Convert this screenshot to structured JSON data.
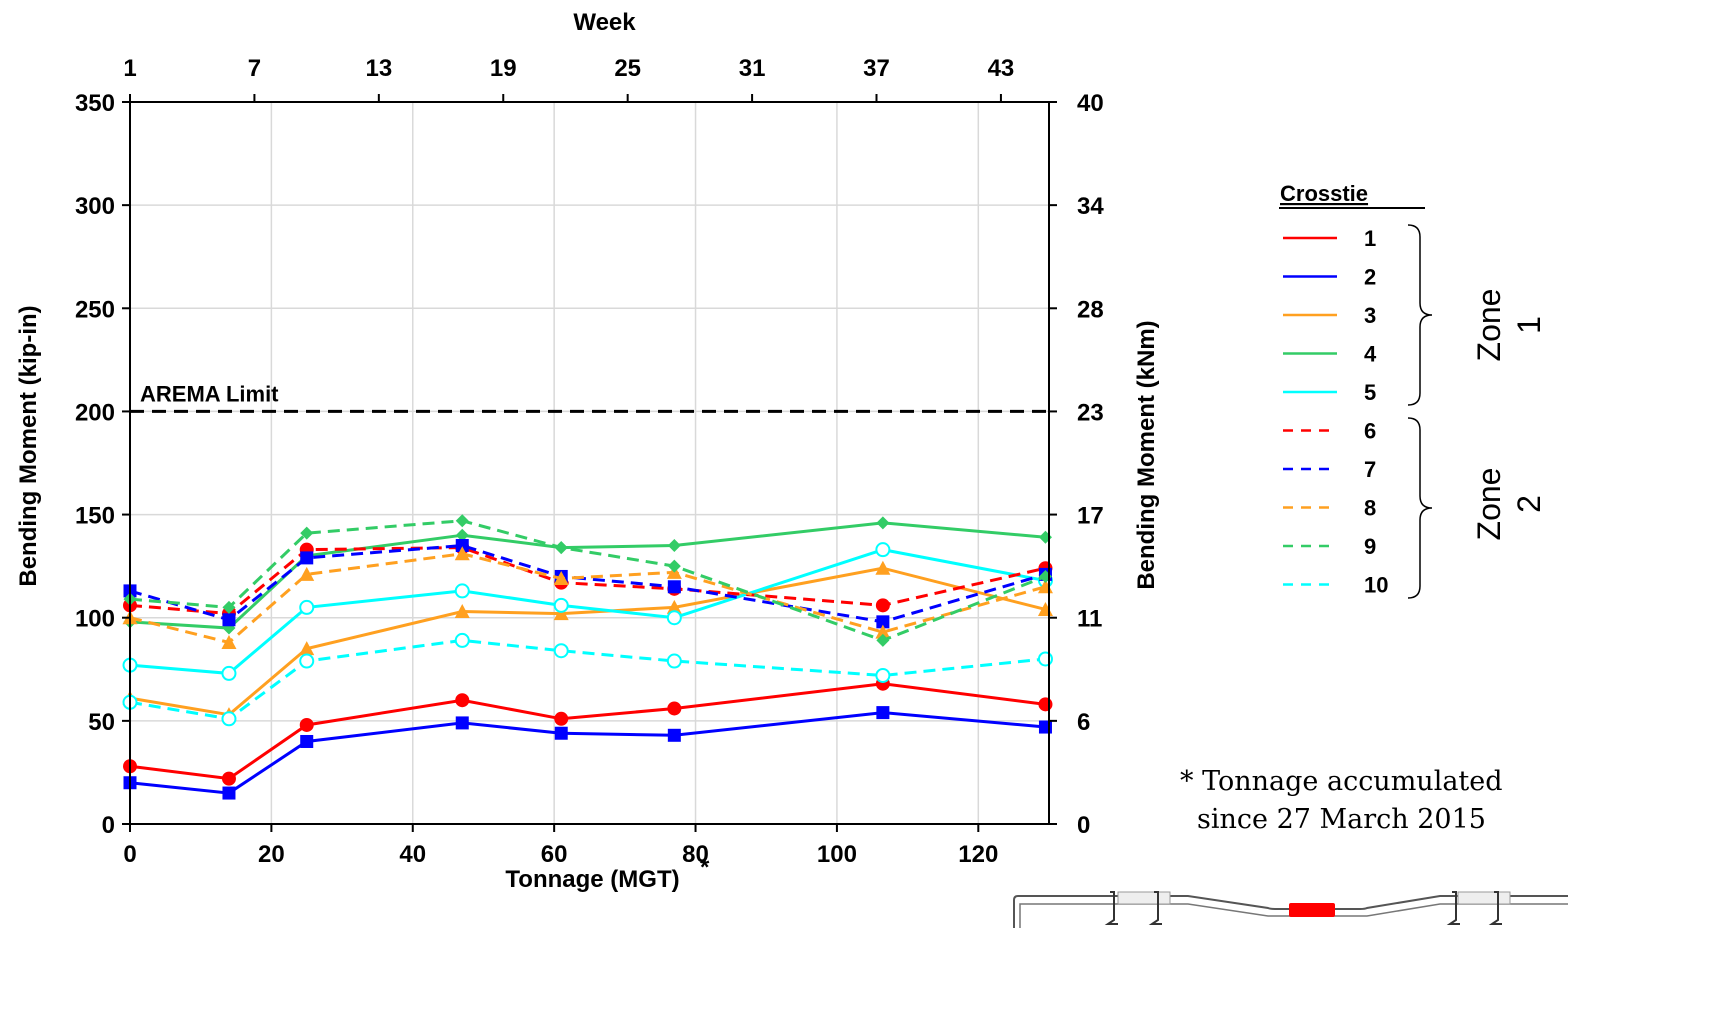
{
  "chart_data": {
    "type": "line",
    "x_label": "Tonnage (MGT)",
    "x_label_mark": "*",
    "x_top_label": "Week",
    "y_label": "Bending Moment (kip-in)",
    "y2_label": "Bending Moment (kNm)",
    "xlim": [
      0,
      130
    ],
    "ylim": [
      0,
      350
    ],
    "x_ticks": [
      0,
      20,
      40,
      60,
      80,
      100,
      120
    ],
    "y_ticks": [
      0,
      50,
      100,
      150,
      200,
      250,
      300,
      350
    ],
    "week_ticks": [
      {
        "label": "1",
        "x": 0
      },
      {
        "label": "7",
        "x": 17.6
      },
      {
        "label": "13",
        "x": 35.2
      },
      {
        "label": "19",
        "x": 52.8
      },
      {
        "label": "25",
        "x": 70.4
      },
      {
        "label": "31",
        "x": 88.0
      },
      {
        "label": "37",
        "x": 105.6
      },
      {
        "label": "43",
        "x": 123.2
      }
    ],
    "y2_ticks": [
      {
        "label": "0",
        "y": 0
      },
      {
        "label": "6",
        "y": 50
      },
      {
        "label": "11",
        "y": 100
      },
      {
        "label": "17",
        "y": 150
      },
      {
        "label": "23",
        "y": 200
      },
      {
        "label": "28",
        "y": 250
      },
      {
        "label": "34",
        "y": 300
      },
      {
        "label": "40",
        "y": 350
      }
    ],
    "grid": true,
    "x": [
      0,
      14,
      25,
      47,
      61,
      77,
      106.5,
      129.5
    ],
    "reference_line": {
      "label": "AREMA Limit",
      "y": 200
    },
    "series": [
      {
        "name": "1",
        "color": "#ff0000",
        "dash": false,
        "marker": "circle-filled",
        "values": [
          28,
          22,
          48,
          60,
          51,
          56,
          68,
          58
        ]
      },
      {
        "name": "2",
        "color": "#0000ff",
        "dash": false,
        "marker": "square-filled",
        "values": [
          20,
          15,
          40,
          49,
          44,
          43,
          54,
          47
        ]
      },
      {
        "name": "3",
        "color": "#ffa020",
        "dash": false,
        "marker": "triangle-filled",
        "values": [
          61,
          53,
          85,
          103,
          102,
          105,
          124,
          104
        ]
      },
      {
        "name": "4",
        "color": "#33cc66",
        "dash": false,
        "marker": "diamond-filled",
        "values": [
          98,
          95,
          130,
          140,
          134,
          135,
          146,
          139
        ]
      },
      {
        "name": "5",
        "color": "#00ffff",
        "dash": false,
        "marker": "circle-open",
        "values": [
          77,
          73,
          105,
          113,
          106,
          100,
          133,
          118
        ]
      },
      {
        "name": "6",
        "color": "#ff0000",
        "dash": true,
        "marker": "circle-filled",
        "values": [
          106,
          102,
          133,
          134,
          117,
          114,
          106,
          124
        ]
      },
      {
        "name": "7",
        "color": "#0000ff",
        "dash": true,
        "marker": "square-filled",
        "values": [
          113,
          99,
          129,
          135,
          120,
          115,
          98,
          121
        ]
      },
      {
        "name": "8",
        "color": "#ffa020",
        "dash": true,
        "marker": "triangle-filled",
        "values": [
          100,
          88,
          121,
          131,
          119,
          122,
          93,
          115
        ]
      },
      {
        "name": "9",
        "color": "#33cc66",
        "dash": true,
        "marker": "diamond-filled",
        "values": [
          109,
          105,
          141,
          147,
          134,
          125,
          89,
          120
        ]
      },
      {
        "name": "10",
        "color": "#00ffff",
        "dash": true,
        "marker": "circle-open",
        "values": [
          59,
          51,
          79,
          89,
          84,
          79,
          72,
          80
        ]
      }
    ]
  },
  "legend": {
    "title": "Crosstie",
    "zones": [
      {
        "label": "Zone",
        "number": "1"
      },
      {
        "label": "Zone",
        "number": "2"
      }
    ]
  },
  "annotation": {
    "line1": "* Tonnage accumulated",
    "line2": "since 27 March 2015"
  },
  "colors": {
    "axis": "#000000",
    "grid": "#d9d9d9",
    "crosstie_highlight": "#ff0000"
  }
}
